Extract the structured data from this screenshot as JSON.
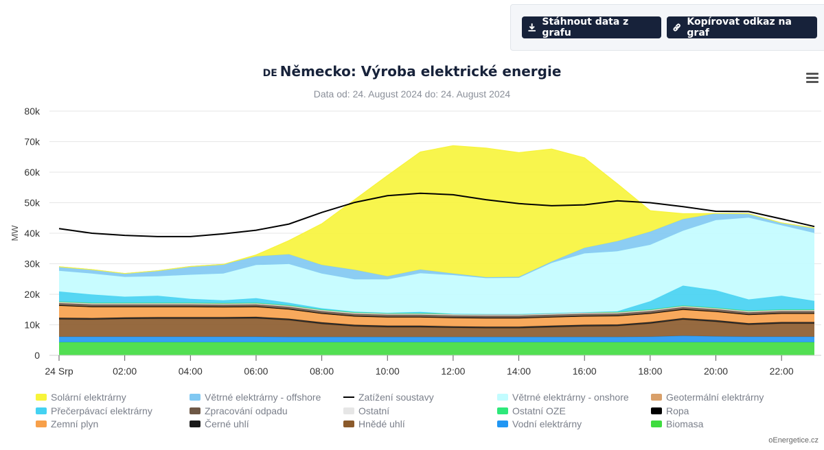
{
  "toolbar": {
    "download_label": "Stáhnout data z grafu",
    "copy_label": "Kopírovat odkaz na graf"
  },
  "header": {
    "flag": "DE",
    "title": "Německo: Výroba elektrické energie",
    "subtitle": "Data od: 24. August 2024 do: 24. August 2024"
  },
  "source": "oEnergetice.cz",
  "chart_data": {
    "type": "area",
    "stacked": true,
    "ylabel": "MW",
    "ylim": [
      0,
      80000
    ],
    "yticks": [
      "0",
      "10k",
      "20k",
      "30k",
      "40k",
      "50k",
      "60k",
      "70k",
      "80k"
    ],
    "xtick_labels": [
      "24 Srp",
      "02:00",
      "04:00",
      "06:00",
      "08:00",
      "10:00",
      "12:00",
      "14:00",
      "16:00",
      "18:00",
      "20:00",
      "22:00"
    ],
    "x_hours": [
      0,
      1,
      2,
      3,
      4,
      5,
      6,
      7,
      8,
      9,
      10,
      11,
      12,
      13,
      14,
      15,
      16,
      17,
      18,
      19,
      20,
      21,
      22,
      23
    ],
    "grid": true,
    "legend_position": "bottom",
    "series": [
      {
        "name": "Biomasa",
        "color": "#3fdc3f",
        "values": [
          4300,
          4300,
          4300,
          4300,
          4300,
          4300,
          4300,
          4300,
          4300,
          4300,
          4300,
          4300,
          4300,
          4300,
          4300,
          4300,
          4300,
          4300,
          4300,
          4300,
          4300,
          4300,
          4300,
          4300
        ]
      },
      {
        "name": "Vodní elektrárny",
        "color": "#2196f3",
        "values": [
          1800,
          1800,
          1800,
          1800,
          1800,
          1800,
          1800,
          1700,
          1700,
          1700,
          1700,
          1700,
          1700,
          1700,
          1700,
          1700,
          1700,
          1700,
          1800,
          2100,
          1900,
          1800,
          1800,
          1800
        ]
      },
      {
        "name": "Hnědé uhlí",
        "color": "#8b5a2b",
        "values": [
          5700,
          5600,
          5800,
          5900,
          5900,
          5900,
          6000,
          5500,
          4300,
          3500,
          3200,
          3200,
          3000,
          2900,
          2900,
          3200,
          3500,
          3600,
          4300,
          5300,
          4800,
          3900,
          4300,
          4300
        ]
      },
      {
        "name": "Černé uhlí",
        "color": "#1a1a1a",
        "values": [
          500,
          500,
          500,
          500,
          500,
          500,
          500,
          500,
          500,
          500,
          500,
          500,
          500,
          500,
          500,
          500,
          500,
          500,
          500,
          500,
          500,
          500,
          500,
          500
        ]
      },
      {
        "name": "Zemní plyn",
        "color": "#f7a04a",
        "values": [
          3900,
          3600,
          3400,
          3300,
          3300,
          3200,
          3200,
          3000,
          2800,
          2700,
          2700,
          2700,
          2700,
          2700,
          2700,
          2700,
          2700,
          2700,
          2700,
          2700,
          2700,
          2700,
          2700,
          2700
        ]
      },
      {
        "name": "Ropa",
        "color": "#000000",
        "values": [
          200,
          200,
          200,
          200,
          200,
          200,
          200,
          200,
          200,
          200,
          200,
          200,
          200,
          200,
          200,
          200,
          200,
          200,
          200,
          200,
          200,
          200,
          200,
          200
        ]
      },
      {
        "name": "Zpracování odpadu",
        "color": "#6e5846",
        "values": [
          700,
          700,
          700,
          700,
          700,
          700,
          700,
          700,
          700,
          700,
          700,
          700,
          700,
          700,
          700,
          700,
          700,
          700,
          700,
          700,
          700,
          700,
          700,
          700
        ]
      },
      {
        "name": "Ostatní",
        "color": "#e6e6e6",
        "values": [
          300,
          300,
          300,
          300,
          300,
          300,
          300,
          300,
          300,
          300,
          300,
          300,
          300,
          300,
          300,
          300,
          300,
          300,
          300,
          300,
          300,
          300,
          300,
          300
        ]
      },
      {
        "name": "Geotermální elektrárny",
        "color": "#d9a06a",
        "values": [
          100,
          100,
          100,
          100,
          100,
          100,
          100,
          100,
          100,
          100,
          100,
          100,
          100,
          100,
          100,
          100,
          100,
          100,
          100,
          100,
          100,
          100,
          100,
          100
        ]
      },
      {
        "name": "Ostatní OZE",
        "color": "#2ee87a",
        "values": [
          100,
          100,
          100,
          100,
          100,
          100,
          100,
          100,
          100,
          100,
          100,
          100,
          100,
          100,
          100,
          100,
          100,
          100,
          100,
          100,
          100,
          100,
          100,
          100
        ]
      },
      {
        "name": "Přečerpávací elektrárny",
        "color": "#44d2f2",
        "values": [
          3300,
          2700,
          2000,
          2300,
          1300,
          900,
          1500,
          800,
          400,
          200,
          100,
          400,
          0,
          0,
          0,
          0,
          0,
          200,
          2700,
          6500,
          5700,
          3700,
          4500,
          2800
        ]
      },
      {
        "name": "Větrné elektrárny - onshore",
        "color": "#c2fcff",
        "values": [
          6800,
          6900,
          6500,
          6400,
          7900,
          8800,
          10900,
          12700,
          11400,
          10600,
          11000,
          12700,
          12700,
          11800,
          11900,
          16500,
          19300,
          19700,
          18500,
          18000,
          23000,
          26800,
          23100,
          22300
        ]
      },
      {
        "name": "Větrné elektrárny - offshore",
        "color": "#80c8f2",
        "values": [
          1300,
          1300,
          1100,
          1800,
          2700,
          3000,
          2800,
          3200,
          2800,
          3100,
          1000,
          1200,
          500,
          300,
          300,
          400,
          1800,
          3300,
          4300,
          3800,
          2200,
          1300,
          800,
          1600
        ]
      },
      {
        "name": "Solární elektrárny",
        "color": "#f7f43a",
        "values": [
          0,
          0,
          0,
          0,
          0,
          0,
          500,
          4500,
          13500,
          23000,
          33000,
          38500,
          41900,
          42300,
          40700,
          36900,
          29500,
          18800,
          6900,
          1800,
          0,
          0,
          0,
          0
        ]
      }
    ],
    "load": {
      "name": "Zatížení soustavy",
      "color": "#000000",
      "values": [
        41500,
        40000,
        39300,
        38900,
        38900,
        39800,
        41000,
        43000,
        46800,
        50100,
        52300,
        53100,
        52600,
        51000,
        49700,
        49000,
        49300,
        50600,
        50000,
        48700,
        47200,
        47100,
        44700,
        42200
      ]
    }
  }
}
